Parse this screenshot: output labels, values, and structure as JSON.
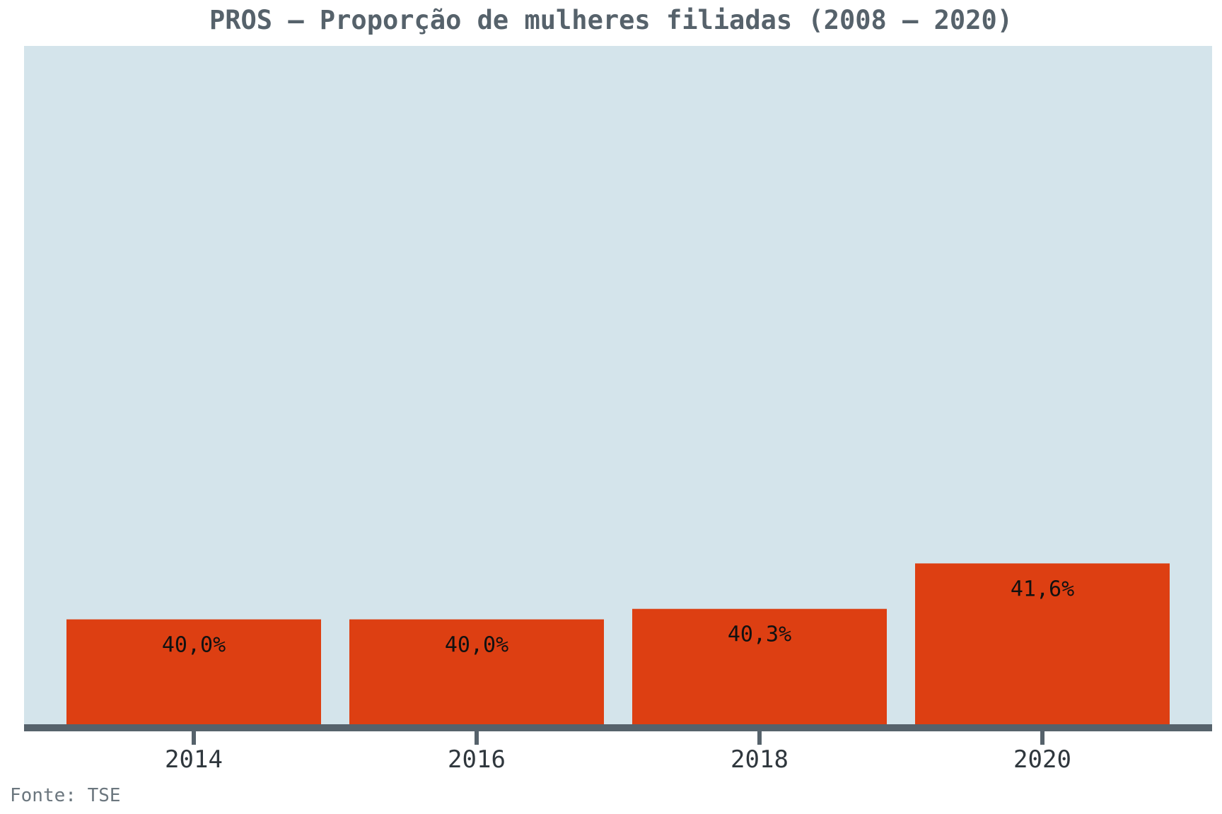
{
  "chart_data": {
    "type": "bar",
    "title": "PROS – Proporção de mulheres filiadas (2008 – 2020)",
    "categories": [
      "2014",
      "2016",
      "2018",
      "2020"
    ],
    "values": [
      40.0,
      40.0,
      40.3,
      41.6
    ],
    "data_labels": [
      "40,0%",
      "40,0%",
      "40,3%",
      "41,6%"
    ],
    "xlabel": "",
    "ylabel": "",
    "ylim": [
      37.0,
      56.4
    ],
    "grid": false,
    "legend": "none",
    "source": "Fonte: TSE"
  },
  "colors": {
    "bar": "#dd3f12",
    "plot_background": "#d4e4eb",
    "axis": "#56626b",
    "title": "#56626b",
    "source": "#6b767e"
  }
}
